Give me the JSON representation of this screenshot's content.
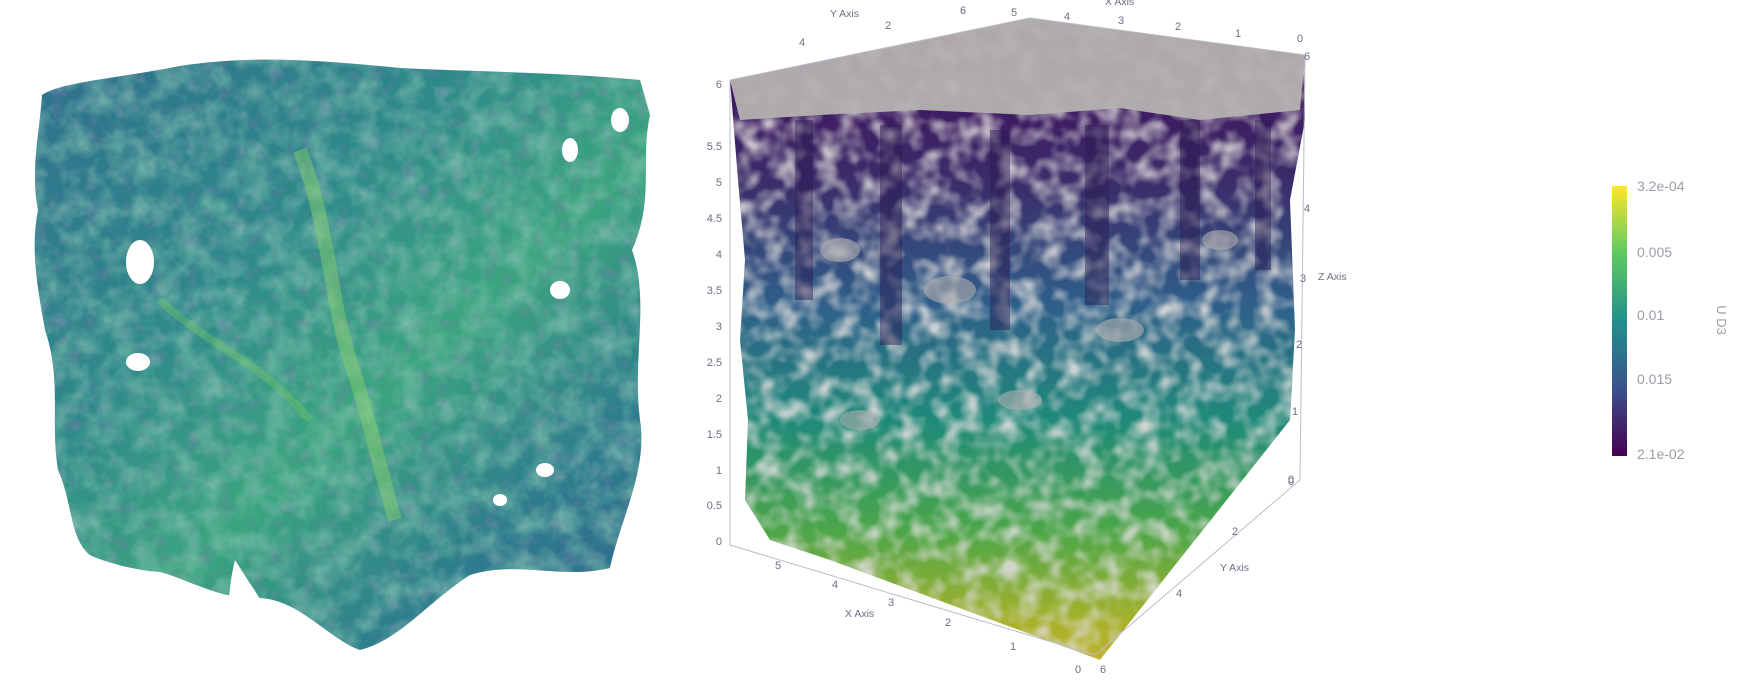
{
  "colors": {
    "viridis_low": "#440154",
    "viridis_mid_low": "#3b528b",
    "viridis_mid": "#21908c",
    "viridis_mid_high": "#5ec962",
    "viridis_high": "#fde725",
    "structure_gray": "#b4b1b0",
    "axis_text": "#6b6f80",
    "colorbar_text": "#9a9da8"
  },
  "axes_3d": {
    "x_axis_label": "X Axis",
    "y_axis_label": "Y Axis",
    "z_axis_label": "Z Axis",
    "z_ticks_left": [
      "0",
      "0.5",
      "1",
      "1.5",
      "2",
      "2.5",
      "3",
      "3.5",
      "4",
      "4.5",
      "5",
      "5.5",
      "6"
    ],
    "x_ticks_top": [
      "6",
      "5",
      "4",
      "3",
      "2",
      "1",
      "0"
    ],
    "y_ticks_top": [
      "4",
      "2"
    ],
    "z_ticks_right": [
      "6",
      "4",
      "3",
      "2",
      "1",
      "0"
    ],
    "x_ticks_bottom": [
      "5",
      "4",
      "3",
      "2",
      "1",
      "0"
    ],
    "y_ticks_bottom": [
      "0",
      "2",
      "4",
      "6"
    ]
  },
  "colorbar": {
    "title": "U D3",
    "ticks": [
      "3.2e-04",
      "0.005",
      "0.01",
      "0.015",
      "2.1e-02"
    ]
  }
}
